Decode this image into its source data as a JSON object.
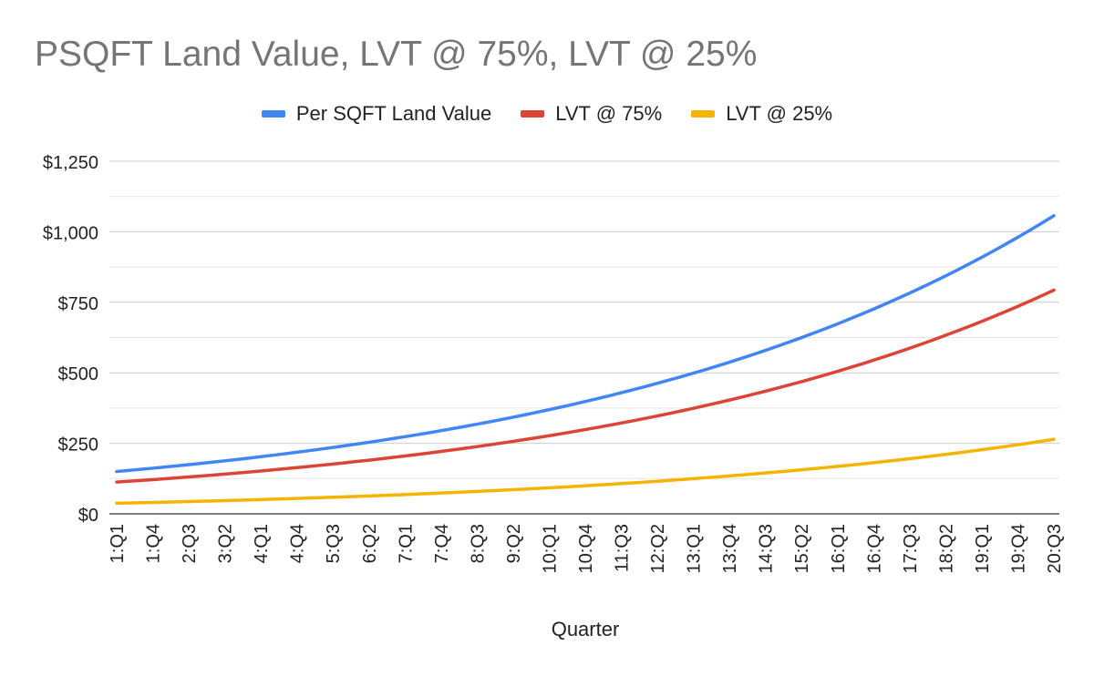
{
  "chart_data": {
    "type": "line",
    "title": "PSQFT Land Value, LVT @ 75%, LVT @ 25%",
    "xlabel": "Quarter",
    "ylabel": "",
    "ylim": [
      0,
      1250
    ],
    "yticks": [
      0,
      250,
      500,
      750,
      1000,
      1250
    ],
    "ytick_labels": [
      "$0",
      "$250",
      "$500",
      "$750",
      "$1,000",
      "$1,250"
    ],
    "minor_gridlines": true,
    "legend_position": "top-center",
    "x_tick_labels": [
      "1:Q1",
      "1:Q4",
      "2:Q3",
      "3:Q2",
      "4:Q1",
      "4:Q4",
      "5:Q3",
      "6:Q2",
      "7:Q1",
      "7:Q4",
      "8:Q3",
      "9:Q2",
      "10:Q1",
      "10:Q4",
      "11:Q3",
      "12:Q2",
      "13:Q1",
      "13:Q4",
      "14:Q3",
      "15:Q2",
      "16:Q1",
      "16:Q4",
      "17:Q3",
      "18:Q2",
      "19:Q1",
      "19:Q4",
      "20:Q3"
    ],
    "x_count": 79,
    "series": [
      {
        "name": "Per SQFT Land Value",
        "color": "#4285F4",
        "start": 150,
        "end": 1057
      },
      {
        "name": "LVT @ 75%",
        "color": "#DB4437",
        "start": 112.5,
        "end": 793
      },
      {
        "name": "LVT @ 25%",
        "color": "#F4B400",
        "start": 37.5,
        "end": 264
      }
    ]
  }
}
